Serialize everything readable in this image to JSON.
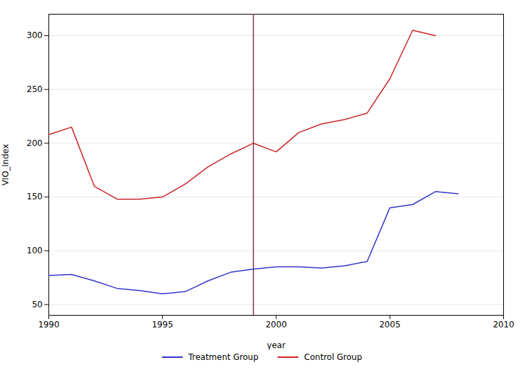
{
  "chart_data": {
    "type": "line",
    "xlabel": "year",
    "ylabel": "VIO_Index",
    "x": [
      1990,
      1991,
      1992,
      1993,
      1994,
      1995,
      1996,
      1997,
      1998,
      1999,
      2000,
      2001,
      2002,
      2003,
      2004,
      2005,
      2006,
      2007,
      2008
    ],
    "series": [
      {
        "name": "Treatment Group",
        "color": "#3333cc",
        "values": [
          77,
          78,
          72,
          65,
          63,
          60,
          62,
          72,
          80,
          83,
          85,
          85,
          84,
          86,
          90,
          140,
          143,
          155,
          153
        ]
      },
      {
        "name": "Control Group",
        "color": "#cc2222",
        "values": [
          208,
          215,
          160,
          148,
          148,
          150,
          162,
          178,
          190,
          200,
          192,
          210,
          218,
          222,
          228,
          260,
          305,
          300,
          null
        ]
      }
    ],
    "vline": {
      "x": 1999,
      "color": "#7f3355"
    },
    "xlim": [
      1990,
      2010
    ],
    "ylim": [
      40,
      320
    ],
    "xticks": [
      1990,
      1995,
      2000,
      2005,
      2010
    ],
    "yticks": [
      50,
      100,
      150,
      200,
      250,
      300
    ],
    "grid": true,
    "legend": "bottom"
  }
}
